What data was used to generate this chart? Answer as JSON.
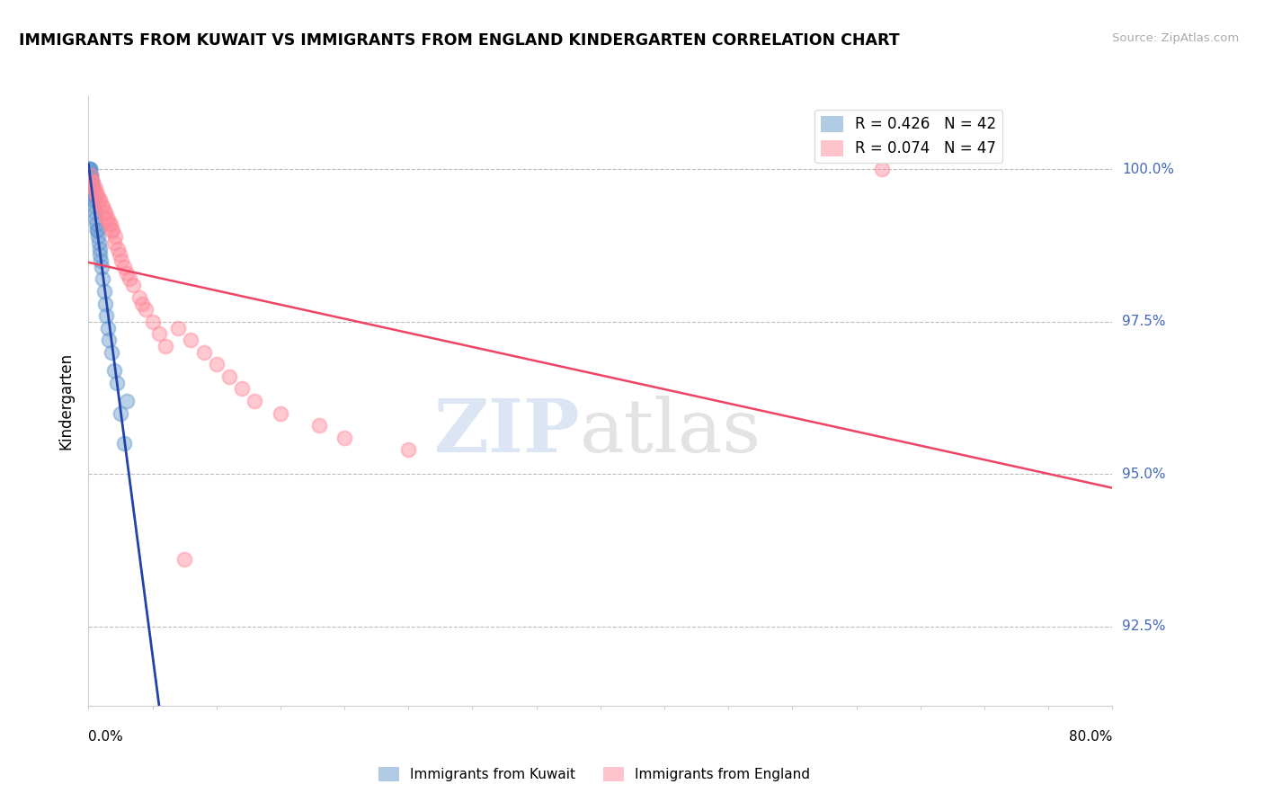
{
  "title": "IMMIGRANTS FROM KUWAIT VS IMMIGRANTS FROM ENGLAND KINDERGARTEN CORRELATION CHART",
  "source": "Source: ZipAtlas.com",
  "ylabel": "Kindergarten",
  "x_min": 0.0,
  "x_max": 80.0,
  "y_min": 91.2,
  "y_max": 101.2,
  "y_ticks": [
    92.5,
    95.0,
    97.5,
    100.0
  ],
  "y_tick_labels": [
    "92.5%",
    "95.0%",
    "97.5%",
    "100.0%"
  ],
  "kuwait_R": 0.426,
  "kuwait_N": 42,
  "england_R": 0.074,
  "england_N": 47,
  "kuwait_color": "#6699CC",
  "england_color": "#FF8899",
  "kuwait_line_color": "#2244AA",
  "england_line_color": "#EE4466",
  "legend_label_kuwait": "Immigrants from Kuwait",
  "legend_label_england": "Immigrants from England",
  "kuwait_x": [
    0.05,
    0.08,
    0.1,
    0.12,
    0.15,
    0.18,
    0.2,
    0.22,
    0.25,
    0.28,
    0.3,
    0.33,
    0.35,
    0.38,
    0.4,
    0.45,
    0.5,
    0.55,
    0.6,
    0.65,
    0.7,
    0.75,
    0.8,
    0.85,
    0.9,
    0.95,
    1.0,
    1.1,
    1.2,
    1.3,
    1.4,
    1.5,
    1.6,
    1.8,
    2.0,
    2.2,
    2.5,
    2.8,
    3.0,
    0.06,
    0.09,
    0.13
  ],
  "kuwait_y": [
    100.0,
    100.0,
    100.0,
    99.9,
    99.9,
    99.9,
    99.8,
    99.8,
    99.8,
    99.7,
    99.7,
    99.6,
    99.6,
    99.5,
    99.5,
    99.4,
    99.3,
    99.2,
    99.1,
    99.0,
    99.0,
    98.9,
    98.8,
    98.7,
    98.6,
    98.5,
    98.4,
    98.2,
    98.0,
    97.8,
    97.6,
    97.4,
    97.2,
    97.0,
    96.7,
    96.5,
    96.0,
    95.5,
    96.2,
    100.0,
    100.0,
    99.9
  ],
  "england_x": [
    0.15,
    0.3,
    0.5,
    0.7,
    0.9,
    1.1,
    1.3,
    1.5,
    1.7,
    1.9,
    2.1,
    2.3,
    2.6,
    3.0,
    3.5,
    4.0,
    4.5,
    5.0,
    5.5,
    6.0,
    7.0,
    8.0,
    9.0,
    10.0,
    11.0,
    12.0,
    13.0,
    15.0,
    18.0,
    20.0,
    25.0,
    0.2,
    0.4,
    0.6,
    0.8,
    1.0,
    1.2,
    1.4,
    1.6,
    1.8,
    2.0,
    2.4,
    2.8,
    3.2,
    62.0,
    7.5,
    4.2
  ],
  "england_y": [
    99.9,
    99.8,
    99.7,
    99.6,
    99.5,
    99.4,
    99.3,
    99.2,
    99.1,
    99.0,
    98.9,
    98.7,
    98.5,
    98.3,
    98.1,
    97.9,
    97.7,
    97.5,
    97.3,
    97.1,
    97.4,
    97.2,
    97.0,
    96.8,
    96.6,
    96.4,
    96.2,
    96.0,
    95.8,
    95.6,
    95.4,
    99.8,
    99.7,
    99.6,
    99.5,
    99.4,
    99.3,
    99.2,
    99.1,
    99.0,
    98.8,
    98.6,
    98.4,
    98.2,
    100.0,
    93.6,
    97.8
  ]
}
